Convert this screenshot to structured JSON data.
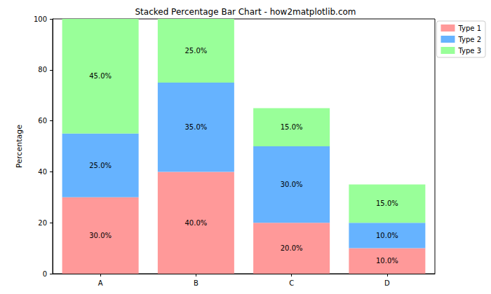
{
  "chart_data": {
    "type": "bar",
    "title": "Stacked Percentage Bar Chart - how2matplotlib.com",
    "y_label": "Percentage",
    "categories": [
      "A",
      "B",
      "C",
      "D"
    ],
    "series": [
      {
        "name": "Type 1",
        "color": "#ff9999",
        "values": [
          30,
          40,
          20,
          10
        ],
        "value_labels": [
          "30.0%",
          "40.0%",
          "20.0%",
          "10.0%"
        ]
      },
      {
        "name": "Type 2",
        "color": "#66b3ff",
        "values": [
          25,
          35,
          30,
          10
        ],
        "value_labels": [
          "25.0%",
          "35.0%",
          "30.0%",
          "10.0%"
        ]
      },
      {
        "name": "Type 3",
        "color": "#99ff99",
        "values": [
          45,
          25,
          15,
          15
        ],
        "value_labels": [
          "45.0%",
          "25.0%",
          "15.0%",
          "15.0%"
        ]
      }
    ],
    "ylim": [
      0,
      100
    ],
    "yticks": [
      0,
      20,
      40,
      60,
      80,
      100
    ],
    "stacked": true,
    "data_labels": true,
    "grid": false,
    "legend": "right"
  }
}
